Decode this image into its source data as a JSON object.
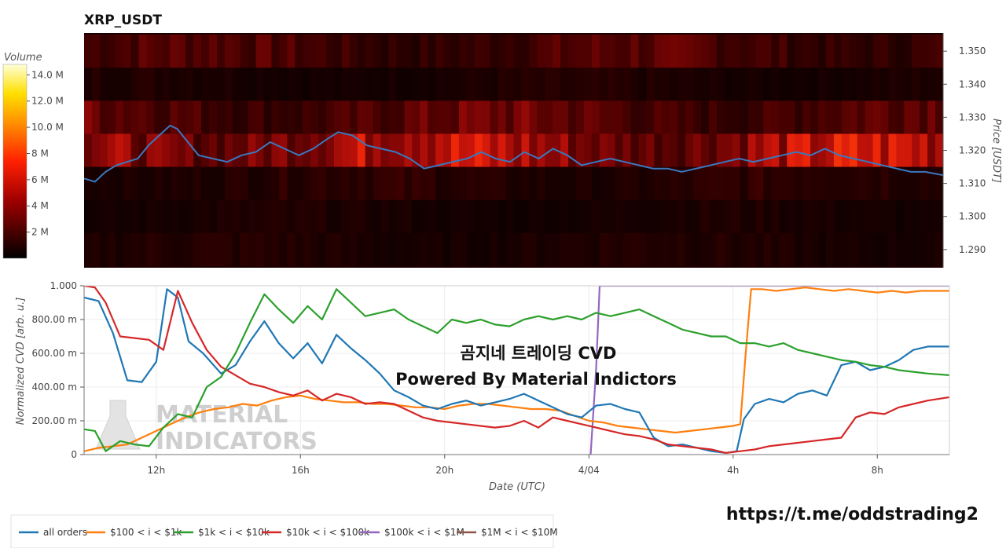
{
  "header": {
    "title": "XRP_USDT"
  },
  "colorbar": {
    "title": "Volume",
    "ticks": [
      {
        "label": "14.0 M",
        "value": 14
      },
      {
        "label": "12.0 M",
        "value": 12
      },
      {
        "label": "10.0 M",
        "value": 10
      },
      {
        "label": "8 M",
        "value": 8
      },
      {
        "label": "6 M",
        "value": 6
      },
      {
        "label": "4 M",
        "value": 4
      },
      {
        "label": "2 M",
        "value": 2
      }
    ],
    "range": [
      0,
      14.8
    ]
  },
  "overlay": {
    "line1": "곰지네 트레이딩 CVD",
    "line2": "Powered By Material Indictors"
  },
  "watermark": {
    "line1": "MATERIAL",
    "line2": "INDICATORS"
  },
  "footer": {
    "link": "https://t.me/oddstrading2"
  },
  "colors": {
    "all_orders": "#1f77b4",
    "s100_1k": "#ff7f0e",
    "s1k_10k": "#2ca02c",
    "s10k_100k": "#d62728",
    "s100k_1m": "#9467bd",
    "s1m_10m": "#8c564b",
    "price_line": "#3a78c0"
  },
  "chart_data": [
    {
      "type": "heatmap",
      "title": "XRP_USDT",
      "ylabel": "Price [USDT]",
      "ylim": [
        1.2845,
        1.3555
      ],
      "y_ticks": [
        "1.350",
        "1.340",
        "1.330",
        "1.320",
        "1.310",
        "1.300",
        "1.290"
      ],
      "y_tick_values": [
        1.35,
        1.34,
        1.33,
        1.32,
        1.31,
        1.3,
        1.29
      ],
      "x_range_hours": [
        10,
        34
      ],
      "price_bands": [
        1.355,
        1.345,
        1.335,
        1.325,
        1.315,
        1.305,
        1.295,
        1.285
      ],
      "band_volume_m": [
        2.2,
        0.7,
        2.8,
        5.4,
        1.1,
        0.6,
        0.8
      ],
      "price_line": {
        "x": [
          10,
          10.3,
          10.6,
          10.9,
          11.2,
          11.5,
          11.8,
          12.1,
          12.4,
          12.6,
          12.9,
          13.2,
          13.6,
          14.0,
          14.4,
          14.8,
          15.2,
          15.6,
          16.0,
          16.4,
          16.8,
          17.1,
          17.5,
          17.9,
          18.3,
          18.7,
          19.1,
          19.5,
          19.9,
          20.3,
          20.7,
          21.1,
          21.5,
          21.9,
          22.3,
          22.7,
          23.1,
          23.5,
          23.9,
          24.3,
          24.7,
          25.1,
          25.5,
          25.9,
          26.3,
          26.7,
          27.1,
          27.5,
          27.9,
          28.3,
          28.7,
          29.1,
          29.5,
          29.9,
          30.3,
          30.7,
          31.1,
          31.5,
          31.9,
          32.3,
          32.7,
          33.1,
          33.5,
          34
        ],
        "y": [
          1.3115,
          1.3105,
          1.3135,
          1.3155,
          1.3165,
          1.3175,
          1.3215,
          1.3245,
          1.3275,
          1.3265,
          1.3225,
          1.3185,
          1.3175,
          1.3165,
          1.3185,
          1.3195,
          1.3225,
          1.3205,
          1.3185,
          1.3205,
          1.3235,
          1.3255,
          1.3245,
          1.3215,
          1.3205,
          1.3195,
          1.3175,
          1.3145,
          1.3155,
          1.3165,
          1.3175,
          1.3195,
          1.3175,
          1.3165,
          1.3195,
          1.3175,
          1.3205,
          1.3185,
          1.3155,
          1.3165,
          1.3175,
          1.3165,
          1.3155,
          1.3145,
          1.3145,
          1.3135,
          1.3145,
          1.3155,
          1.3165,
          1.3175,
          1.3165,
          1.3175,
          1.3185,
          1.3195,
          1.3185,
          1.3205,
          1.3185,
          1.3175,
          1.3165,
          1.3155,
          1.3145,
          1.3135,
          1.3135,
          1.3125
        ]
      }
    },
    {
      "type": "line",
      "xlabel": "Date (UTC)",
      "ylabel": "Normalized CVD [arb. u.]",
      "xlim": [
        10,
        34
      ],
      "ylim": [
        0,
        1.0
      ],
      "x_ticks": [
        {
          "label": "12h",
          "value": 12
        },
        {
          "label": "16h",
          "value": 16
        },
        {
          "label": "20h",
          "value": 20
        },
        {
          "label": "4/04",
          "value": 24
        },
        {
          "label": "4h",
          "value": 28
        },
        {
          "label": "8h",
          "value": 32
        }
      ],
      "y_ticks": [
        {
          "label": "1.000",
          "value": 1.0
        },
        {
          "label": "800.00 m",
          "value": 0.8
        },
        {
          "label": "600.00 m",
          "value": 0.6
        },
        {
          "label": "400.00 m",
          "value": 0.4
        },
        {
          "label": "200.00 m",
          "value": 0.2
        },
        {
          "label": "0",
          "value": 0
        }
      ],
      "legend_position": "bottom",
      "series": [
        {
          "name": "all orders",
          "x": [
            10,
            10.4,
            10.8,
            11.2,
            11.6,
            12.0,
            12.3,
            12.6,
            12.9,
            13.3,
            13.8,
            14.2,
            14.6,
            15.0,
            15.4,
            15.8,
            16.2,
            16.6,
            17.0,
            17.4,
            17.8,
            18.2,
            18.6,
            19.0,
            19.4,
            19.8,
            20.2,
            20.6,
            21.0,
            21.4,
            21.8,
            22.2,
            22.6,
            23.0,
            23.4,
            23.8,
            24.2,
            24.6,
            25.0,
            25.4,
            25.8,
            26.2,
            26.6,
            27.0,
            27.4,
            27.8,
            28.1,
            28.3,
            28.6,
            29.0,
            29.4,
            29.8,
            30.2,
            30.6,
            31.0,
            31.4,
            31.8,
            32.2,
            32.6,
            33.0,
            33.4,
            34
          ],
          "y": [
            0.93,
            0.91,
            0.72,
            0.44,
            0.43,
            0.55,
            0.98,
            0.93,
            0.67,
            0.6,
            0.48,
            0.53,
            0.67,
            0.79,
            0.66,
            0.57,
            0.66,
            0.54,
            0.71,
            0.63,
            0.56,
            0.48,
            0.38,
            0.34,
            0.29,
            0.27,
            0.3,
            0.32,
            0.29,
            0.31,
            0.33,
            0.36,
            0.32,
            0.28,
            0.24,
            0.22,
            0.29,
            0.3,
            0.27,
            0.25,
            0.1,
            0.05,
            0.06,
            0.04,
            0.02,
            0.01,
            0.02,
            0.21,
            0.3,
            0.33,
            0.31,
            0.36,
            0.38,
            0.35,
            0.53,
            0.55,
            0.5,
            0.52,
            0.56,
            0.62,
            0.64,
            0.64
          ]
        },
        {
          "name": "$100 < i < $1k",
          "x": [
            10,
            10.4,
            10.8,
            11.2,
            11.6,
            12.0,
            12.4,
            12.8,
            13.2,
            13.6,
            14.0,
            14.4,
            14.8,
            15.2,
            15.6,
            16.0,
            16.4,
            16.8,
            17.2,
            17.6,
            18.0,
            18.4,
            18.8,
            19.2,
            19.6,
            20.0,
            20.4,
            20.8,
            21.2,
            21.6,
            22.0,
            22.4,
            22.8,
            23.2,
            23.6,
            24.0,
            24.4,
            24.8,
            25.2,
            25.6,
            26.0,
            26.4,
            26.8,
            27.2,
            27.6,
            28.0,
            28.2,
            28.35,
            28.5,
            28.8,
            29.2,
            29.6,
            30.0,
            30.4,
            30.8,
            31.2,
            31.6,
            32.0,
            32.4,
            32.8,
            33.2,
            34
          ],
          "y": [
            0.02,
            0.04,
            0.05,
            0.06,
            0.1,
            0.14,
            0.18,
            0.22,
            0.25,
            0.27,
            0.28,
            0.3,
            0.29,
            0.32,
            0.34,
            0.35,
            0.33,
            0.32,
            0.31,
            0.31,
            0.3,
            0.3,
            0.29,
            0.28,
            0.28,
            0.27,
            0.29,
            0.3,
            0.3,
            0.29,
            0.28,
            0.27,
            0.27,
            0.26,
            0.23,
            0.2,
            0.19,
            0.17,
            0.16,
            0.15,
            0.14,
            0.13,
            0.14,
            0.15,
            0.16,
            0.17,
            0.18,
            0.6,
            0.98,
            0.98,
            0.97,
            0.98,
            0.99,
            0.98,
            0.97,
            0.98,
            0.97,
            0.96,
            0.97,
            0.96,
            0.97,
            0.97
          ]
        },
        {
          "name": "$1k < i < $10k",
          "x": [
            10,
            10.3,
            10.6,
            11.0,
            11.4,
            11.8,
            12.2,
            12.6,
            13.0,
            13.4,
            13.8,
            14.2,
            14.6,
            15.0,
            15.4,
            15.8,
            16.2,
            16.6,
            17.0,
            17.4,
            17.8,
            18.2,
            18.6,
            19.0,
            19.4,
            19.8,
            20.2,
            20.6,
            21.0,
            21.4,
            21.8,
            22.2,
            22.6,
            23.0,
            23.4,
            23.8,
            24.2,
            24.6,
            25.0,
            25.4,
            25.8,
            26.2,
            26.6,
            27.0,
            27.4,
            27.8,
            28.2,
            28.6,
            29.0,
            29.4,
            29.8,
            30.2,
            30.6,
            31.0,
            31.4,
            31.8,
            32.2,
            32.6,
            33.0,
            33.4,
            34
          ],
          "y": [
            0.15,
            0.14,
            0.02,
            0.08,
            0.06,
            0.05,
            0.16,
            0.24,
            0.22,
            0.4,
            0.46,
            0.6,
            0.78,
            0.95,
            0.86,
            0.78,
            0.88,
            0.8,
            0.98,
            0.9,
            0.82,
            0.84,
            0.86,
            0.8,
            0.76,
            0.72,
            0.8,
            0.78,
            0.8,
            0.77,
            0.76,
            0.8,
            0.82,
            0.8,
            0.82,
            0.8,
            0.84,
            0.82,
            0.84,
            0.86,
            0.82,
            0.78,
            0.74,
            0.72,
            0.7,
            0.7,
            0.66,
            0.66,
            0.64,
            0.66,
            0.62,
            0.6,
            0.58,
            0.56,
            0.55,
            0.53,
            0.52,
            0.5,
            0.49,
            0.48,
            0.47
          ]
        },
        {
          "name": "$10k < i < $100k",
          "x": [
            10,
            10.3,
            10.6,
            11.0,
            11.4,
            11.8,
            12.2,
            12.6,
            13.0,
            13.4,
            13.8,
            14.2,
            14.6,
            15.0,
            15.4,
            15.8,
            16.2,
            16.6,
            17.0,
            17.4,
            17.8,
            18.2,
            18.6,
            19.0,
            19.4,
            19.8,
            20.2,
            20.6,
            21.0,
            21.4,
            21.8,
            22.2,
            22.6,
            23.0,
            23.4,
            23.8,
            24.2,
            24.6,
            25.0,
            25.4,
            25.8,
            26.2,
            26.6,
            27.0,
            27.4,
            27.8,
            28.2,
            28.6,
            29.0,
            29.4,
            29.8,
            30.2,
            30.6,
            31.0,
            31.4,
            31.8,
            32.2,
            32.6,
            33.0,
            33.4,
            34
          ],
          "y": [
            1.0,
            0.99,
            0.9,
            0.7,
            0.69,
            0.68,
            0.62,
            0.97,
            0.78,
            0.62,
            0.52,
            0.47,
            0.42,
            0.4,
            0.37,
            0.35,
            0.38,
            0.32,
            0.36,
            0.34,
            0.3,
            0.31,
            0.3,
            0.26,
            0.22,
            0.2,
            0.19,
            0.18,
            0.17,
            0.16,
            0.17,
            0.2,
            0.16,
            0.22,
            0.2,
            0.18,
            0.16,
            0.14,
            0.12,
            0.11,
            0.09,
            0.06,
            0.05,
            0.04,
            0.03,
            0.01,
            0.02,
            0.03,
            0.05,
            0.06,
            0.07,
            0.08,
            0.09,
            0.1,
            0.22,
            0.25,
            0.24,
            0.28,
            0.3,
            0.32,
            0.34
          ]
        },
        {
          "name": "$100k < i < $1M",
          "x": [
            24.05,
            24.2,
            24.3,
            34
          ],
          "y": [
            0,
            0.5,
            1.0,
            1.0
          ]
        },
        {
          "name": "$1M < i < $10M",
          "x": [],
          "y": []
        }
      ]
    }
  ]
}
